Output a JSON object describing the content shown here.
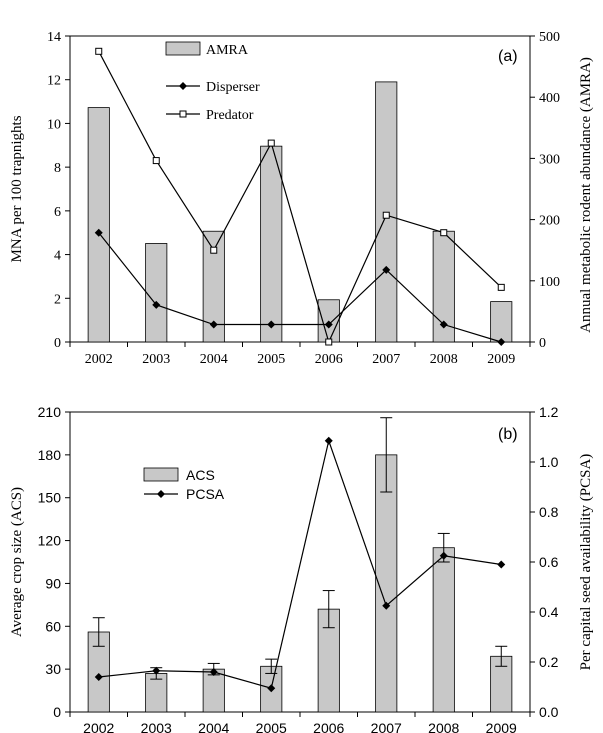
{
  "chart_data": [
    {
      "type": "bar",
      "panel_label": "(a)",
      "categories": [
        "2002",
        "2003",
        "2004",
        "2005",
        "2006",
        "2007",
        "2008",
        "2009"
      ],
      "ylabel_left": "MNA per 100 trapnights",
      "ylabel_right": "Annual metabolic rodent abundance (AMRA)",
      "ylim_left": [
        0,
        14
      ],
      "ylim_right": [
        0,
        500
      ],
      "yticks_left": [
        "0",
        "2",
        "4",
        "6",
        "8",
        "10",
        "12",
        "14"
      ],
      "yticks_right": [
        "0",
        "100",
        "200",
        "300",
        "400",
        "500"
      ],
      "legend_position": "top-center",
      "series": [
        {
          "name": "AMRA",
          "kind": "bar",
          "axis": "right",
          "values": [
            383,
            161,
            181,
            320,
            69,
            425,
            181,
            66
          ]
        },
        {
          "name": "Disperser",
          "kind": "line",
          "marker": "filled-diamond",
          "axis": "left",
          "values": [
            5.0,
            1.7,
            0.8,
            0.8,
            0.8,
            3.3,
            0.8,
            0.0
          ]
        },
        {
          "name": "Predator",
          "kind": "line",
          "marker": "open-square",
          "axis": "left",
          "values": [
            13.3,
            8.3,
            4.2,
            9.1,
            0.0,
            5.8,
            5.0,
            2.5
          ]
        }
      ]
    },
    {
      "type": "bar",
      "panel_label": "(b)",
      "categories": [
        "2002",
        "2003",
        "2004",
        "2005",
        "2006",
        "2007",
        "2008",
        "2009"
      ],
      "ylabel_left": "Average crop size (ACS)",
      "ylabel_right": "Per capital  seed availability (PCSA)",
      "ylim_left": [
        0,
        210
      ],
      "ylim_right": [
        0,
        1.2
      ],
      "yticks_left": [
        "0",
        "30",
        "60",
        "90",
        "120",
        "150",
        "180",
        "210"
      ],
      "yticks_right": [
        "0.0",
        "0.2",
        "0.4",
        "0.6",
        "0.8",
        "1.0",
        "1.2"
      ],
      "legend_position": "top-left",
      "series": [
        {
          "name": "ACS",
          "kind": "bar",
          "axis": "left",
          "values": [
            56,
            27,
            30,
            32,
            72,
            180,
            115,
            39
          ],
          "errors": [
            10,
            4,
            4,
            5,
            13,
            26,
            10,
            7
          ]
        },
        {
          "name": "PCSA",
          "kind": "line",
          "marker": "filled-diamond",
          "axis": "right",
          "values": [
            0.14,
            0.165,
            0.16,
            0.095,
            1.085,
            0.425,
            0.625,
            0.59
          ]
        }
      ]
    }
  ]
}
